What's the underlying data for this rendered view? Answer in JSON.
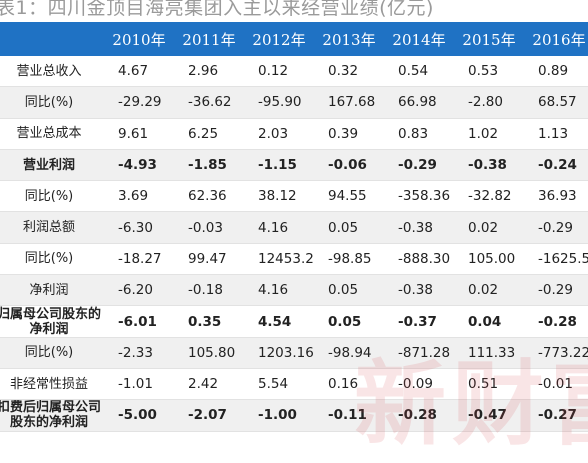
{
  "title": "表1：四川金顶目海亮集团入主以来经营业绩(亿元)",
  "watermark": "新财富",
  "table": {
    "headers": [
      "",
      "2010年",
      "2011年",
      "2012年",
      "2013年",
      "2014年",
      "2015年",
      "2016年"
    ],
    "rows": [
      {
        "label": "营业总收入",
        "values": [
          "4.67",
          "2.96",
          "0.12",
          "0.32",
          "0.54",
          "0.53",
          "0.89"
        ],
        "bold": false
      },
      {
        "label": "同比(%)",
        "values": [
          "-29.29",
          "-36.62",
          "-95.90",
          "167.68",
          "66.98",
          "-2.80",
          "68.57"
        ],
        "bold": false
      },
      {
        "label": "营业总成本",
        "values": [
          "9.61",
          "6.25",
          "2.03",
          "0.39",
          "0.83",
          "1.02",
          "1.13"
        ],
        "bold": false
      },
      {
        "label": "营业利润",
        "values": [
          "-4.93",
          "-1.85",
          "-1.15",
          "-0.06",
          "-0.29",
          "-0.38",
          "-0.24"
        ],
        "bold": true
      },
      {
        "label": "同比(%)",
        "values": [
          "3.69",
          "62.36",
          "38.12",
          "94.55",
          "-358.36",
          "-32.82",
          "36.93"
        ],
        "bold": false
      },
      {
        "label": "利润总额",
        "values": [
          "-6.30",
          "-0.03",
          "4.16",
          "0.05",
          "-0.38",
          "0.02",
          "-0.29"
        ],
        "bold": false
      },
      {
        "label": "同比(%)",
        "values": [
          "-18.27",
          "99.47",
          "12453.21",
          "-98.85",
          "-888.30",
          "105.00",
          "-1625.57"
        ],
        "bold": false
      },
      {
        "label": "净利润",
        "values": [
          "-6.20",
          "-0.18",
          "4.16",
          "0.05",
          "-0.38",
          "0.02",
          "-0.29"
        ],
        "bold": false
      },
      {
        "label": "归属母公司股东的净利润",
        "values": [
          "-6.01",
          "0.35",
          "4.54",
          "0.05",
          "-0.37",
          "0.04",
          "-0.28"
        ],
        "bold": true
      },
      {
        "label": "同比(%)",
        "values": [
          "-2.33",
          "105.80",
          "1203.16",
          "-98.94",
          "-871.28",
          "111.33",
          "-773.22"
        ],
        "bold": false
      },
      {
        "label": "非经常性损益",
        "values": [
          "-1.01",
          "2.42",
          "5.54",
          "0.16",
          "-0.09",
          "0.51",
          "-0.01"
        ],
        "bold": false
      },
      {
        "label": "扣费后归属母公司股东的净利润",
        "values": [
          "-5.00",
          "-2.07",
          "-1.00",
          "-0.11",
          "-0.28",
          "-0.47",
          "-0.27"
        ],
        "bold": true
      }
    ]
  }
}
